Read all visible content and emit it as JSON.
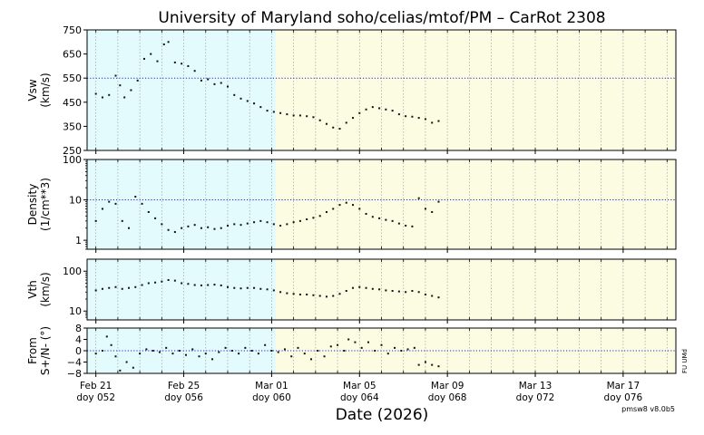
{
  "chart_data": {
    "type": "scatter",
    "title": "University of Maryland  soho/celias/mtof/PM – CarRot 2308",
    "xlabel": "Date (2026)",
    "version": "pmsw8 v8.0b5",
    "side_note": "FU UMd",
    "x_ticks": [
      {
        "date": "Feb 21",
        "doy": "doy 052",
        "day": 52
      },
      {
        "date": "Feb 25",
        "doy": "doy 056",
        "day": 56
      },
      {
        "date": "Mar 01",
        "doy": "doy 060",
        "day": 60
      },
      {
        "date": "Mar 05",
        "doy": "doy 064",
        "day": 64
      },
      {
        "date": "Mar 09",
        "doy": "doy 068",
        "day": 68
      },
      {
        "date": "Mar 13",
        "doy": "doy 072",
        "day": 72
      },
      {
        "date": "Mar 17",
        "doy": "doy 076",
        "day": 76
      }
    ],
    "xlim": [
      51.6,
      78.4
    ],
    "shading": [
      {
        "from": 51.6,
        "to": 60.2,
        "color": "#e3fbfc"
      },
      {
        "from": 60.2,
        "to": 78.4,
        "color": "#fcfce3"
      }
    ],
    "panels": [
      {
        "id": "vsw",
        "ylabel": [
          "Vsw",
          "(km/s)"
        ],
        "scale": "linear",
        "ylim": [
          250,
          750
        ],
        "ticks": [
          {
            "v": 250,
            "label": "250"
          },
          {
            "v": 350,
            "label": "350"
          },
          {
            "v": 450,
            "label": "450"
          },
          {
            "v": 550,
            "label": "550"
          },
          {
            "v": 650,
            "label": "650"
          },
          {
            "v": 750,
            "label": "750"
          }
        ],
        "ref_line": 550,
        "series": [
          {
            "name": "",
            "points": [
              [
                52.0,
                485
              ],
              [
                52.3,
                470
              ],
              [
                52.6,
                480
              ],
              [
                52.9,
                560
              ],
              [
                53.1,
                520
              ],
              [
                53.3,
                470
              ],
              [
                53.6,
                500
              ],
              [
                53.9,
                540
              ],
              [
                54.2,
                630
              ],
              [
                54.5,
                650
              ],
              [
                54.8,
                620
              ],
              [
                55.1,
                690
              ],
              [
                55.3,
                700
              ],
              [
                55.6,
                615
              ],
              [
                55.9,
                610
              ],
              [
                56.2,
                600
              ],
              [
                56.5,
                580
              ],
              [
                56.8,
                540
              ],
              [
                57.1,
                545
              ],
              [
                57.4,
                525
              ],
              [
                57.7,
                530
              ],
              [
                58.0,
                515
              ],
              [
                58.3,
                480
              ],
              [
                58.6,
                465
              ],
              [
                58.9,
                455
              ],
              [
                59.2,
                445
              ],
              [
                59.5,
                430
              ],
              [
                59.8,
                415
              ],
              [
                60.1,
                410
              ],
              [
                60.4,
                405
              ],
              [
                60.7,
                400
              ],
              [
                61.0,
                395
              ],
              [
                61.3,
                395
              ],
              [
                61.6,
                392
              ],
              [
                61.9,
                388
              ],
              [
                62.2,
                375
              ],
              [
                62.5,
                360
              ],
              [
                62.8,
                345
              ],
              [
                63.1,
                340
              ],
              [
                63.4,
                365
              ],
              [
                63.7,
                385
              ],
              [
                64.0,
                405
              ],
              [
                64.3,
                420
              ],
              [
                64.6,
                430
              ],
              [
                64.9,
                425
              ],
              [
                65.2,
                420
              ],
              [
                65.5,
                415
              ],
              [
                65.8,
                400
              ],
              [
                66.1,
                392
              ],
              [
                66.4,
                390
              ],
              [
                66.7,
                385
              ],
              [
                67.0,
                380
              ],
              [
                67.3,
                365
              ],
              [
                67.6,
                372
              ]
            ]
          }
        ]
      },
      {
        "id": "density",
        "ylabel": [
          "Density",
          "(1/cm**3)"
        ],
        "scale": "log",
        "ylim": [
          0.6,
          100
        ],
        "ticks": [
          {
            "v": 1,
            "label": "1"
          },
          {
            "v": 10,
            "label": "10"
          },
          {
            "v": 100,
            "label": "100"
          }
        ],
        "ref_line": 10,
        "series": [
          {
            "name": "",
            "points": [
              [
                52.0,
                3.0
              ],
              [
                52.3,
                6.0
              ],
              [
                52.6,
                9.0
              ],
              [
                52.9,
                8.0
              ],
              [
                53.2,
                3.0
              ],
              [
                53.5,
                2.0
              ],
              [
                53.8,
                12.0
              ],
              [
                54.1,
                8.0
              ],
              [
                54.4,
                5.0
              ],
              [
                54.7,
                3.5
              ],
              [
                55.0,
                2.5
              ],
              [
                55.3,
                1.8
              ],
              [
                55.6,
                1.6
              ],
              [
                55.9,
                2.0
              ],
              [
                56.2,
                2.2
              ],
              [
                56.5,
                2.4
              ],
              [
                56.8,
                2.0
              ],
              [
                57.1,
                2.1
              ],
              [
                57.4,
                1.9
              ],
              [
                57.7,
                2.0
              ],
              [
                58.0,
                2.3
              ],
              [
                58.3,
                2.5
              ],
              [
                58.6,
                2.4
              ],
              [
                58.9,
                2.6
              ],
              [
                59.2,
                2.8
              ],
              [
                59.5,
                3.0
              ],
              [
                59.8,
                2.8
              ],
              [
                60.1,
                2.5
              ],
              [
                60.4,
                2.3
              ],
              [
                60.7,
                2.5
              ],
              [
                61.0,
                2.8
              ],
              [
                61.3,
                3.0
              ],
              [
                61.6,
                3.3
              ],
              [
                61.9,
                3.6
              ],
              [
                62.2,
                4.0
              ],
              [
                62.5,
                5.0
              ],
              [
                62.8,
                6.0
              ],
              [
                63.1,
                7.5
              ],
              [
                63.4,
                8.5
              ],
              [
                63.7,
                7.5
              ],
              [
                64.0,
                6.0
              ],
              [
                64.3,
                4.5
              ],
              [
                64.6,
                3.8
              ],
              [
                64.9,
                3.5
              ],
              [
                65.2,
                3.2
              ],
              [
                65.5,
                3.0
              ],
              [
                65.8,
                2.6
              ],
              [
                66.1,
                2.3
              ],
              [
                66.4,
                2.2
              ],
              [
                66.7,
                11.0
              ],
              [
                67.0,
                6.0
              ],
              [
                67.3,
                5.0
              ],
              [
                67.6,
                9.0
              ]
            ]
          }
        ]
      },
      {
        "id": "vth",
        "ylabel": [
          "Vth",
          "(km/s)"
        ],
        "scale": "log",
        "ylim": [
          6,
          200
        ],
        "ticks": [
          {
            "v": 10,
            "label": "10"
          },
          {
            "v": 100,
            "label": "100"
          }
        ],
        "ref_line": null,
        "series": [
          {
            "name": "",
            "points": [
              [
                52.0,
                33
              ],
              [
                52.3,
                36
              ],
              [
                52.6,
                38
              ],
              [
                52.9,
                40
              ],
              [
                53.2,
                36
              ],
              [
                53.5,
                38
              ],
              [
                53.8,
                40
              ],
              [
                54.1,
                45
              ],
              [
                54.4,
                50
              ],
              [
                54.7,
                52
              ],
              [
                55.0,
                55
              ],
              [
                55.3,
                60
              ],
              [
                55.6,
                58
              ],
              [
                55.9,
                50
              ],
              [
                56.2,
                48
              ],
              [
                56.5,
                45
              ],
              [
                56.8,
                44
              ],
              [
                57.1,
                45
              ],
              [
                57.4,
                46
              ],
              [
                57.7,
                44
              ],
              [
                58.0,
                40
              ],
              [
                58.3,
                38
              ],
              [
                58.6,
                37
              ],
              [
                58.9,
                38
              ],
              [
                59.2,
                38
              ],
              [
                59.5,
                36
              ],
              [
                59.8,
                35
              ],
              [
                60.1,
                33
              ],
              [
                60.4,
                30
              ],
              [
                60.7,
                28
              ],
              [
                61.0,
                27
              ],
              [
                61.3,
                26
              ],
              [
                61.6,
                26
              ],
              [
                61.9,
                25
              ],
              [
                62.2,
                24
              ],
              [
                62.5,
                23
              ],
              [
                62.8,
                24
              ],
              [
                63.1,
                27
              ],
              [
                63.4,
                32
              ],
              [
                63.7,
                38
              ],
              [
                64.0,
                40
              ],
              [
                64.3,
                38
              ],
              [
                64.6,
                36
              ],
              [
                64.9,
                35
              ],
              [
                65.2,
                33
              ],
              [
                65.5,
                32
              ],
              [
                65.8,
                31
              ],
              [
                66.1,
                30
              ],
              [
                66.4,
                32
              ],
              [
                66.7,
                30
              ],
              [
                67.0,
                26
              ],
              [
                67.3,
                24
              ],
              [
                67.6,
                22
              ]
            ]
          }
        ]
      },
      {
        "id": "from",
        "ylabel": [
          "From",
          "S+/N- (°)"
        ],
        "scale": "linear",
        "ylim": [
          -8,
          8
        ],
        "ticks": [
          {
            "v": -8,
            "label": "−8"
          },
          {
            "v": -4,
            "label": "−4"
          },
          {
            "v": 0,
            "label": "0"
          },
          {
            "v": 4,
            "label": "4"
          },
          {
            "v": 8,
            "label": "8"
          }
        ],
        "ref_line": 0,
        "series": [
          {
            "name": "",
            "points": [
              [
                52.0,
                -1.0
              ],
              [
                52.3,
                0.0
              ],
              [
                52.5,
                5.0
              ],
              [
                52.7,
                2.0
              ],
              [
                52.9,
                -2.0
              ],
              [
                53.1,
                -7.0
              ],
              [
                53.4,
                -4.0
              ],
              [
                53.7,
                -6.0
              ],
              [
                54.0,
                -1.0
              ],
              [
                54.3,
                0.5
              ],
              [
                54.6,
                0.0
              ],
              [
                54.9,
                -0.5
              ],
              [
                55.2,
                1.0
              ],
              [
                55.5,
                -1.0
              ],
              [
                55.8,
                0.0
              ],
              [
                56.1,
                -1.5
              ],
              [
                56.4,
                0.5
              ],
              [
                56.7,
                -2.0
              ],
              [
                57.0,
                -1.0
              ],
              [
                57.3,
                -3.0
              ],
              [
                57.6,
                -0.5
              ],
              [
                57.9,
                1.0
              ],
              [
                58.2,
                0.0
              ],
              [
                58.5,
                -1.0
              ],
              [
                58.8,
                1.0
              ],
              [
                59.1,
                0.0
              ],
              [
                59.4,
                -1.0
              ],
              [
                59.7,
                2.0
              ],
              [
                60.0,
                0.0
              ],
              [
                60.3,
                -0.5
              ],
              [
                60.6,
                0.5
              ],
              [
                60.9,
                -2.0
              ],
              [
                61.2,
                1.0
              ],
              [
                61.5,
                -1.0
              ],
              [
                61.8,
                -3.0
              ],
              [
                62.1,
                0.0
              ],
              [
                62.4,
                -2.0
              ],
              [
                62.7,
                1.5
              ],
              [
                63.0,
                2.0
              ],
              [
                63.3,
                0.0
              ],
              [
                63.5,
                4.0
              ],
              [
                63.8,
                3.0
              ],
              [
                64.1,
                1.0
              ],
              [
                64.4,
                3.0
              ],
              [
                64.7,
                0.0
              ],
              [
                65.0,
                2.0
              ],
              [
                65.3,
                -1.0
              ],
              [
                65.6,
                1.0
              ],
              [
                65.9,
                0.0
              ],
              [
                66.2,
                0.5
              ],
              [
                66.5,
                1.0
              ],
              [
                66.7,
                -5.0
              ],
              [
                67.0,
                -4.0
              ],
              [
                67.3,
                -5.0
              ],
              [
                67.6,
                -5.5
              ]
            ]
          }
        ]
      }
    ]
  }
}
